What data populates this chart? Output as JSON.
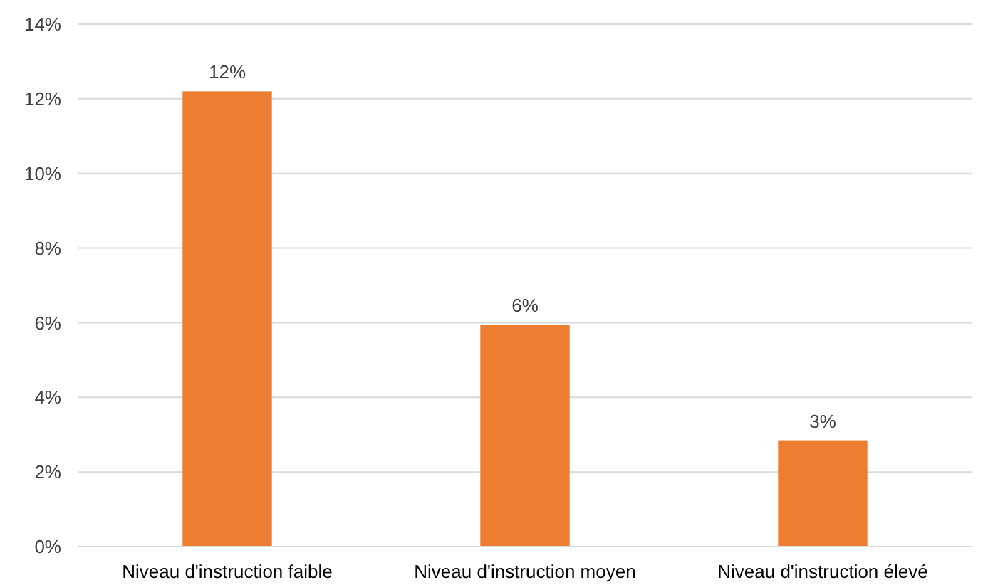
{
  "chart_data": {
    "type": "bar",
    "categories": [
      "Niveau d'instruction faible",
      "Niveau d'instruction moyen",
      "Niveau d'instruction élevé"
    ],
    "values": [
      12.2,
      5.95,
      2.85
    ],
    "color": "#ed7d31",
    "value_labels": [
      "12%",
      "6%",
      "3%"
    ],
    "ylim": [
      0,
      14
    ],
    "yticks": [
      {
        "value": 0,
        "label": "0%"
      },
      {
        "value": 2,
        "label": "2%"
      },
      {
        "value": 4,
        "label": "4%"
      },
      {
        "value": 6,
        "label": "6%"
      },
      {
        "value": 8,
        "label": "8%"
      },
      {
        "value": 10,
        "label": "10%"
      },
      {
        "value": 12,
        "label": "12%"
      },
      {
        "value": 14,
        "label": "14%"
      }
    ],
    "grid": "y"
  }
}
